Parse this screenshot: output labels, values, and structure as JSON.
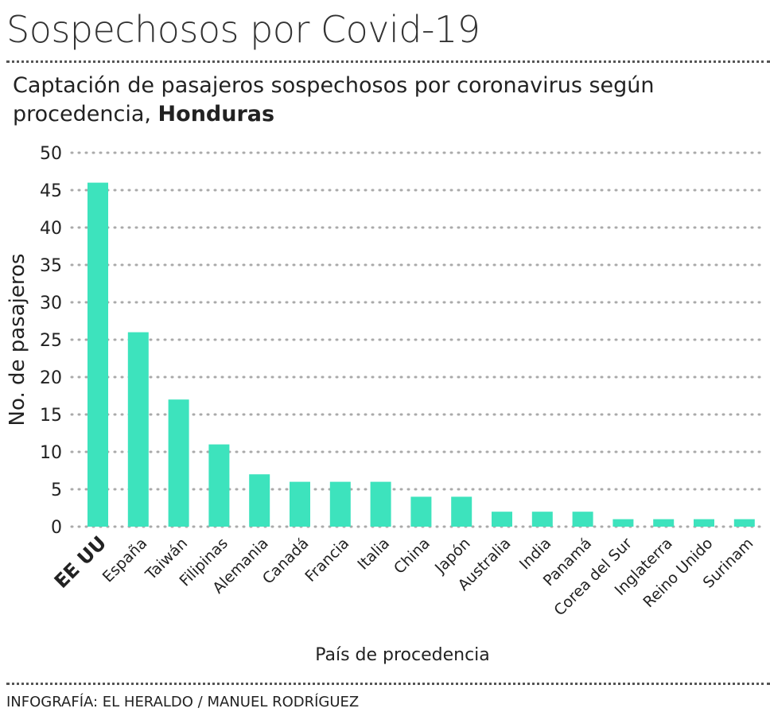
{
  "header": {
    "title": "Sospechosos por Covid-19",
    "subtitle_text": "Captación de pasajeros sospechosos por coronavirus según procedencia, ",
    "subtitle_bold": "Honduras"
  },
  "footer": {
    "credit": "INFOGRAFÍA: EL HERALDO / MANUEL RODRÍGUEZ"
  },
  "chart_data": {
    "type": "bar",
    "title": "Sospechosos por Covid-19",
    "subtitle": "Captación de pasajeros sospechosos por coronavirus según procedencia, Honduras",
    "xlabel": "País de procedencia",
    "ylabel": "No. de pasajeros",
    "ylim": [
      0,
      50
    ],
    "yticks": [
      0,
      5,
      10,
      15,
      20,
      25,
      30,
      35,
      40,
      45,
      50
    ],
    "grid": true,
    "bar_color": "#3de3bd",
    "categories": [
      "EE UU",
      "España",
      "Taiwán",
      "Filipinas",
      "Alemania",
      "Canadá",
      "Francia",
      "Italia",
      "China",
      "Japón",
      "Australia",
      "India",
      "Panamá",
      "Corea del Sur",
      "Inglaterra",
      "Reino Unido",
      "Surinam"
    ],
    "values": [
      46,
      26,
      17,
      11,
      7,
      6,
      6,
      6,
      4,
      4,
      2,
      2,
      2,
      1,
      1,
      1,
      1
    ]
  }
}
